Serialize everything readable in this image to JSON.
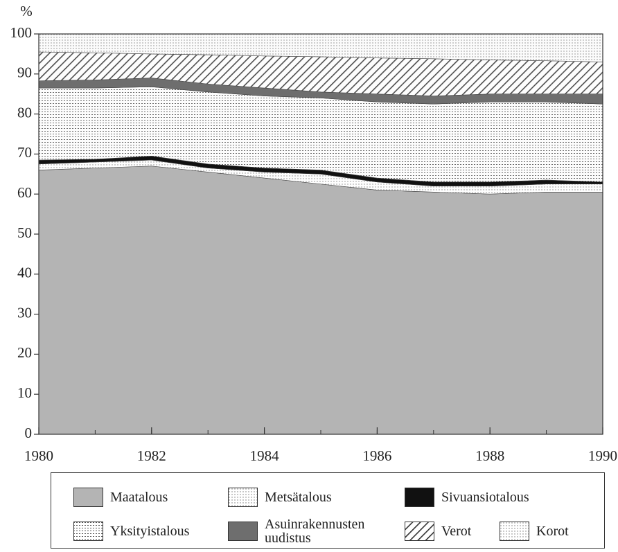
{
  "chart_data": {
    "type": "stacked_area",
    "y_label": "%",
    "x": [
      1980,
      1981,
      1982,
      1983,
      1984,
      1985,
      1986,
      1987,
      1988,
      1989,
      1990
    ],
    "xlim": [
      1980,
      1990
    ],
    "xticks": [
      1980,
      1982,
      1984,
      1986,
      1988,
      1990
    ],
    "ylim": [
      0,
      100
    ],
    "yticks": [
      0,
      10,
      20,
      30,
      40,
      50,
      60,
      70,
      80,
      90,
      100
    ],
    "series": [
      {
        "name": "Maatalous",
        "color": "#b4b4b4",
        "pattern": "solid",
        "values": [
          66,
          66.5,
          67,
          65.5,
          64,
          62.5,
          61,
          60.5,
          60,
          60.5,
          60.5
        ]
      },
      {
        "name": "Metsätalous",
        "color": "#f4f4f4",
        "pattern": "dots",
        "values": [
          1.5,
          1.5,
          1.5,
          1,
          1.5,
          2.5,
          2,
          1.5,
          2,
          2,
          2
        ]
      },
      {
        "name": "Sivuansiotalous",
        "color": "#111111",
        "pattern": "solid",
        "values": [
          1,
          0.7,
          1,
          1,
          1,
          1,
          1,
          1,
          1,
          1,
          0.5
        ]
      },
      {
        "name": "Yksityistalous",
        "color": "#ececec",
        "pattern": "hlines",
        "values": [
          18,
          17.8,
          17.3,
          18,
          18,
          18,
          19,
          19.5,
          20,
          19.5,
          19.5
        ]
      },
      {
        "name": "Asuinrakennusten uudistus",
        "color": "#6e6e6e",
        "pattern": "solid",
        "values": [
          1.8,
          2,
          2.2,
          2,
          2,
          1.5,
          2,
          2,
          2,
          2,
          2.5
        ]
      },
      {
        "name": "Verot",
        "color": "#f0f0f0",
        "pattern": "diagonal",
        "values": [
          7.2,
          6.8,
          6,
          7.3,
          8,
          8.8,
          9,
          9.3,
          8.5,
          8.3,
          8
        ]
      },
      {
        "name": "Korot",
        "color": "#e2e2e2",
        "pattern": "dots",
        "values": [
          4.5,
          4.7,
          5,
          5.2,
          5.5,
          5.7,
          6,
          6.2,
          6.5,
          6.7,
          7
        ]
      }
    ]
  }
}
